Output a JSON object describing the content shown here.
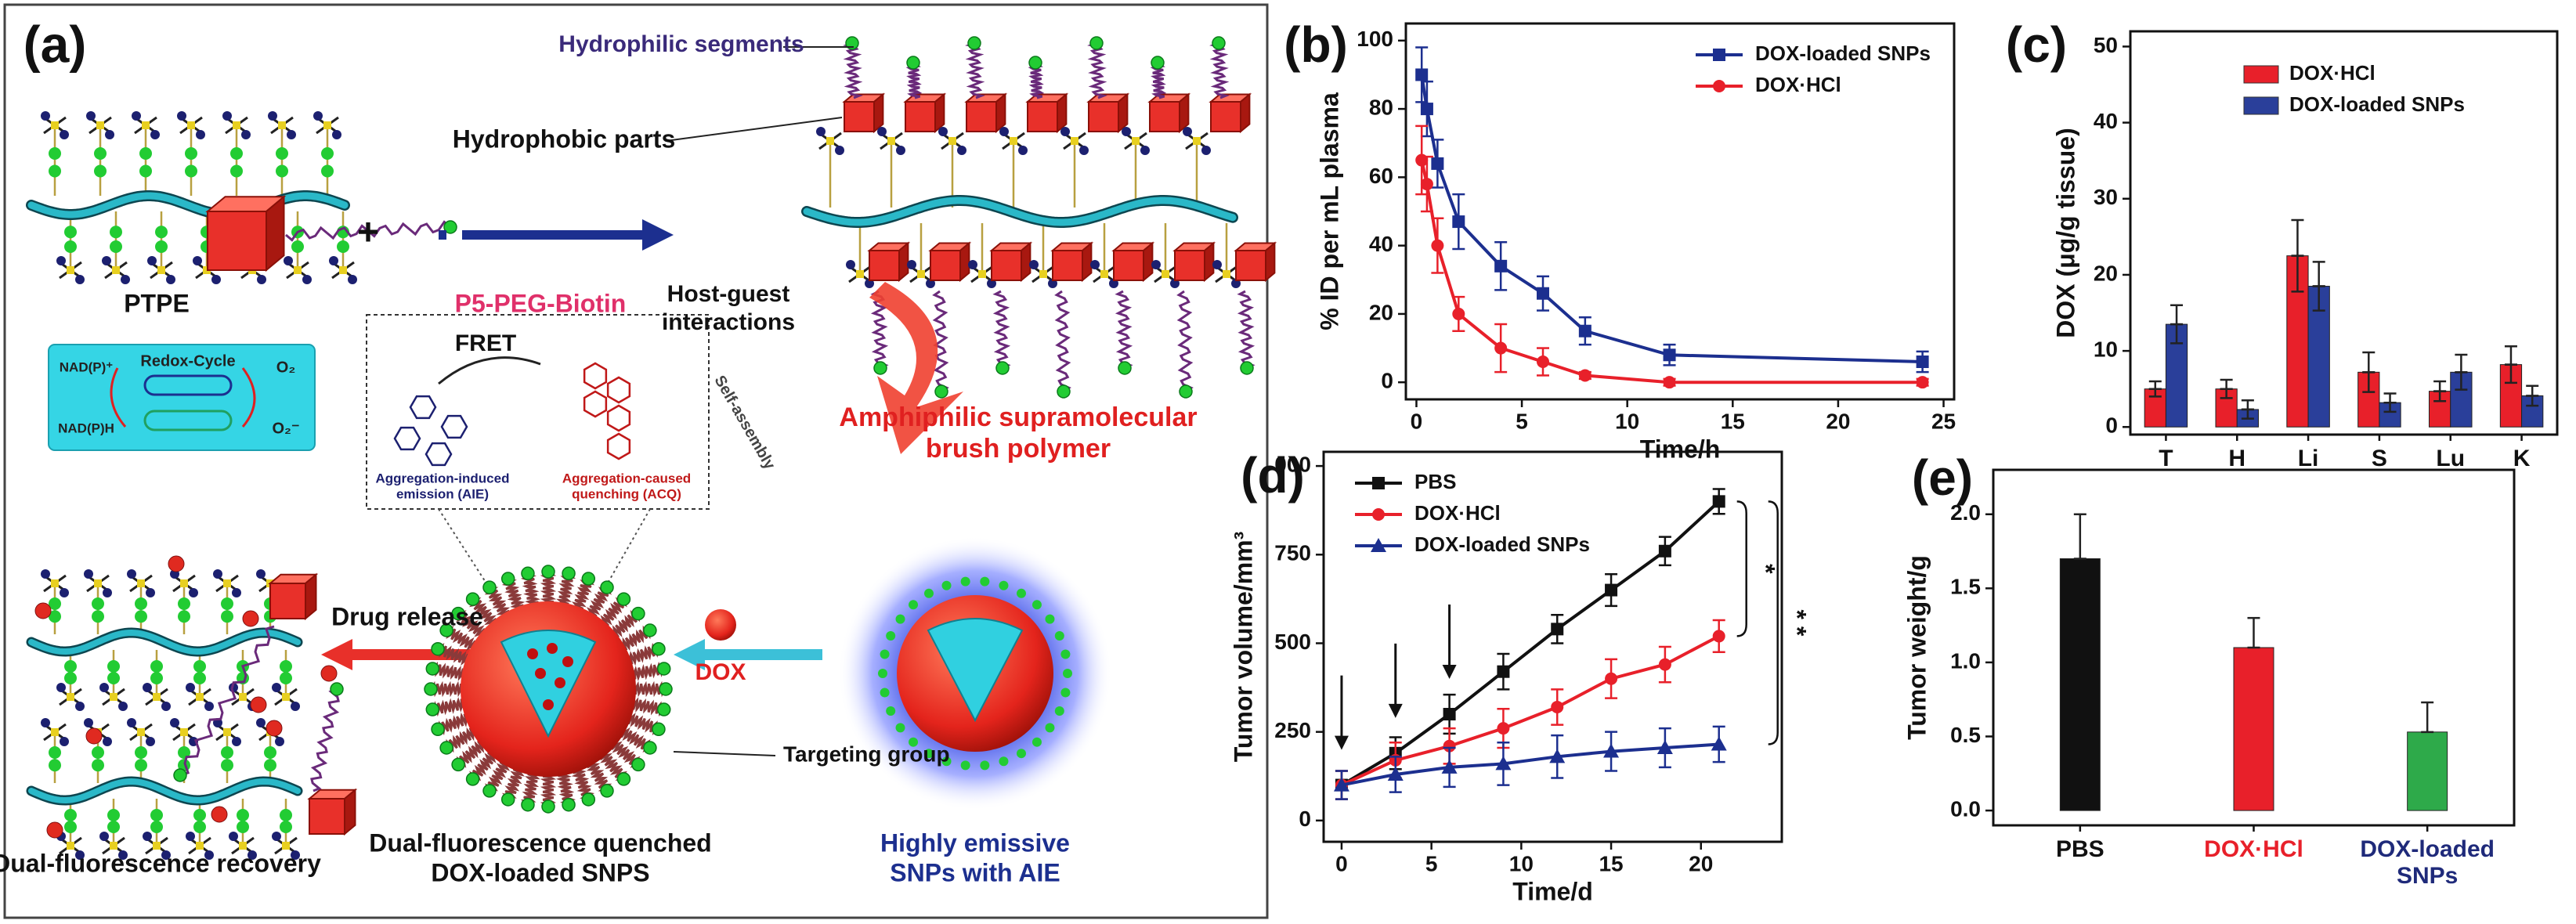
{
  "diagram": {
    "panel_label": "(a)",
    "hydrophilic": "Hydrophilic segments",
    "hydrophobic": "Hydrophobic parts",
    "ptpe": "PTPE",
    "plus": "+",
    "p5": "P5-PEG-Biotin",
    "host_guest": [
      "Host-guest",
      "interactions"
    ],
    "amphiphilic": [
      "Amphiphilic supramolecular",
      "brush polymer"
    ],
    "redox": "Redox-Cycle",
    "nad_ox": "NAD(P)⁺",
    "nad_red": "NAD(P)H",
    "o2": "O₂",
    "o2_radical": "O₂⁻",
    "fret": "FRET",
    "aie": [
      "Aggregation-induced",
      "emission (AIE)"
    ],
    "acq": [
      "Aggregation-caused",
      "quenching (ACQ)"
    ],
    "self_assembly": "Self-assembly",
    "drug_release": "Drug release",
    "dox": "DOX",
    "targeting": "Targeting group",
    "recovery": "Dual-fluorescence recovery",
    "quenched": [
      "Dual-fluorescence quenched",
      "DOX-loaded SNPS"
    ],
    "emissive": [
      "Highly emissive",
      "SNPs with AIE"
    ]
  },
  "chart_data": [
    {
      "panel_label": "(b)",
      "type": "line",
      "xlabel": "Time/h",
      "ylabel": "% ID per mL plasma",
      "x": [
        0.25,
        0.5,
        1,
        2,
        4,
        6,
        8,
        12,
        24
      ],
      "xlim": [
        -0.5,
        25.5
      ],
      "ylim": [
        -5,
        105
      ],
      "xticks": [
        0,
        5,
        10,
        15,
        20,
        25
      ],
      "yticks": [
        0,
        20,
        40,
        60,
        80,
        100
      ],
      "legend": "upper right",
      "series": [
        {
          "name": "DOX-loaded SNPs",
          "color": "#1c2f8f",
          "marker": "square",
          "values": [
            90,
            80,
            64,
            47,
            34,
            26,
            15,
            8,
            6
          ],
          "errors": [
            8,
            8,
            7,
            8,
            7,
            5,
            4,
            3,
            3
          ]
        },
        {
          "name": "DOX·HCl",
          "color": "#e8202a",
          "marker": "circle",
          "values": [
            65,
            58,
            40,
            20,
            10,
            6,
            2,
            0,
            0
          ],
          "errors": [
            10,
            8,
            8,
            5,
            7,
            4,
            1,
            1,
            1
          ]
        }
      ]
    },
    {
      "panel_label": "(c)",
      "type": "bar",
      "ylabel": "DOX (μg/g tissue)",
      "categories": [
        "T",
        "H",
        "Li",
        "S",
        "Lu",
        "K"
      ],
      "ylim": [
        -1,
        52
      ],
      "yticks": [
        0,
        10,
        20,
        30,
        40,
        50
      ],
      "legend": "upper right",
      "series": [
        {
          "name": "DOX·HCl",
          "color": "#e8202a",
          "values": [
            5,
            5,
            22.5,
            7.2,
            4.7,
            8.2
          ],
          "errors": [
            1,
            1.2,
            4.7,
            2.6,
            1.3,
            2.4
          ]
        },
        {
          "name": "DOX-loaded SNPs",
          "color": "#2a3f9a",
          "values": [
            13.5,
            2.3,
            18.5,
            3.2,
            7.2,
            4.1
          ],
          "errors": [
            2.5,
            1.2,
            3.2,
            1.2,
            2.3,
            1.3
          ]
        }
      ]
    },
    {
      "panel_label": "(d)",
      "type": "line",
      "xlabel": "Time/d",
      "ylabel": "Tumor volume/mm³",
      "x": [
        0,
        3,
        6,
        9,
        12,
        15,
        18,
        21
      ],
      "xlim": [
        -1,
        24.5
      ],
      "ylim": [
        -60,
        1040
      ],
      "xticks": [
        0,
        5,
        10,
        15,
        20
      ],
      "yticks": [
        0,
        250,
        500,
        750,
        {
          "value": 1000,
          "label": "000"
        }
      ],
      "legend": "upper left",
      "dose_days": [
        0,
        3,
        6
      ],
      "annotations": [
        "*",
        "* *"
      ],
      "series": [
        {
          "name": "PBS",
          "color": "#111111",
          "marker": "square",
          "values": [
            100,
            190,
            300,
            420,
            540,
            650,
            760,
            900
          ],
          "errors": [
            40,
            45,
            55,
            50,
            40,
            45,
            40,
            35
          ]
        },
        {
          "name": "DOX·HCl",
          "color": "#e8202a",
          "marker": "circle",
          "values": [
            100,
            170,
            210,
            260,
            320,
            400,
            440,
            520
          ],
          "errors": [
            40,
            50,
            50,
            55,
            50,
            55,
            50,
            45
          ]
        },
        {
          "name": "DOX-loaded SNPs",
          "color": "#1c2f8f",
          "marker": "triangle",
          "values": [
            100,
            130,
            150,
            160,
            180,
            195,
            205,
            215
          ],
          "errors": [
            40,
            50,
            55,
            60,
            60,
            55,
            55,
            50
          ]
        }
      ]
    },
    {
      "panel_label": "(e)",
      "type": "bar",
      "ylabel": "Tumor weight/g",
      "categories": [
        "PBS",
        "DOX·HCl",
        [
          "DOX-loaded",
          "SNPs"
        ]
      ],
      "values": [
        1.7,
        1.1,
        0.53
      ],
      "errors": [
        0.3,
        0.2,
        0.2
      ],
      "colors": [
        "#111111",
        "#e8202a",
        "#2eaa4a"
      ],
      "category_label_colors": [
        "#111111",
        "#e8202a",
        "#1f2a7a"
      ],
      "ylim": [
        -0.1,
        2.3
      ],
      "yticks": [
        {
          "value": 0,
          "label": "0.0"
        },
        0.5,
        {
          "value": 1,
          "label": "1.0"
        },
        1.5,
        {
          "value": 2,
          "label": "2.0"
        }
      ]
    }
  ]
}
